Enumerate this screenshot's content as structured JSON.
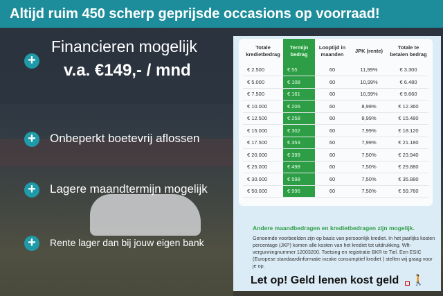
{
  "banner": "Altijd ruim 450 scherp geprijsde occasions op voorraad!",
  "features": {
    "f1a": "Financieren mogelijk",
    "f1b": "v.a. €149,- / mnd",
    "f2": "Onbeperkt boetevrij aflossen",
    "f3": "Lagere maandtermijn mogelijk",
    "f4": "Rente lager dan bij jouw eigen bank"
  },
  "table": {
    "headers": [
      "Totale kredietbedrag",
      "Termijn bedrag",
      "Looptijd in maanden",
      "JPK (rente)",
      "Totale te betalen bedrag"
    ],
    "rows": [
      [
        "€ 2.500",
        "€ 55",
        "60",
        "11,99%",
        "€ 3.300"
      ],
      [
        "€ 5.000",
        "€ 108",
        "60",
        "10,99%",
        "€ 6.480"
      ],
      [
        "€ 7.500",
        "€ 161",
        "60",
        "10,99%",
        "€ 9.660"
      ],
      [
        "€ 10.000",
        "€ 206",
        "60",
        "8,99%",
        "€ 12.360"
      ],
      [
        "€ 12.500",
        "€ 258",
        "60",
        "8,99%",
        "€ 15.480"
      ],
      [
        "€ 15.000",
        "€ 302",
        "60",
        "7,99%",
        "€ 18.120"
      ],
      [
        "€ 17.500",
        "€ 353",
        "60",
        "7,99%",
        "€ 21.180"
      ],
      [
        "€ 20.000",
        "€ 399",
        "60",
        "7,50%",
        "€ 23.940"
      ],
      [
        "€ 25.000",
        "€ 498",
        "60",
        "7,50%",
        "€ 29.880"
      ],
      [
        "€ 30.000",
        "€ 598",
        "60",
        "7,50%",
        "€ 35.880"
      ],
      [
        "€ 50.000",
        "€ 996",
        "60",
        "7,50%",
        "€ 59.760"
      ]
    ]
  },
  "note_title": "Andere maandbedragen en kredietbedragen zijn mogelijk.",
  "note": "Genoemde voorbeelden zijn op basis van persoonlijk krediet. In het jaarlijks kosten percentage (JKP) komen alle kosten van het krediet tot uitdrukking. Wft-vergunningnummer 12003200. Toetsing en registratie BKR te Tiel. Een ESIC (Europese standaardinformatie inzake consumptief krediet ) stellen wij graag voor je op.",
  "warning": "Let op! Geld lenen kost geld",
  "colors": {
    "teal": "#1e8d9b",
    "green": "#2e9e46"
  }
}
